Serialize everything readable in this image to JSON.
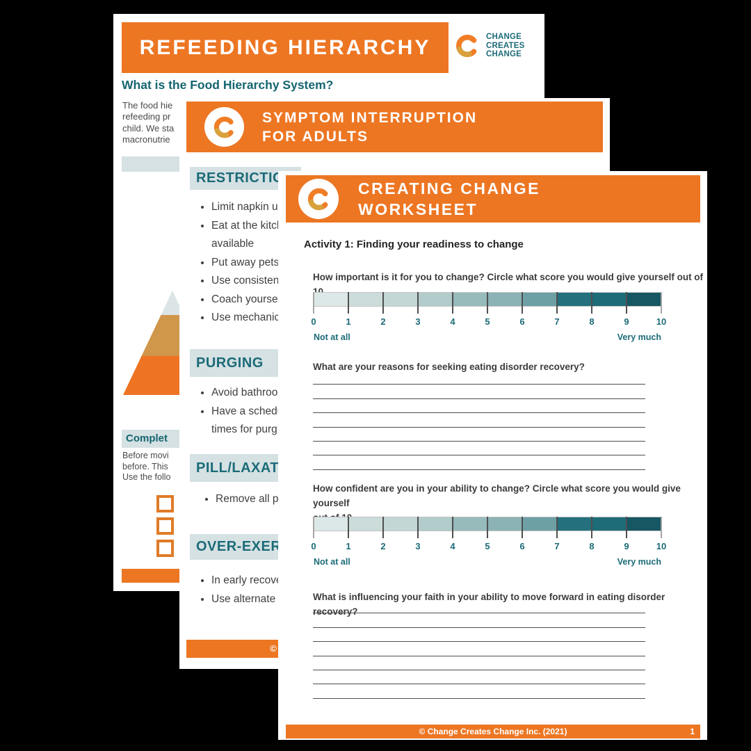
{
  "colors": {
    "orange": "#ED7623",
    "teal": "#1C6B78",
    "teal_dark": "#156570",
    "band_blue": "#D5E1E3",
    "pyramid_top": "#DCE5E6",
    "pyramid_mid": "#D0964A",
    "pyramid_bottom": "#EE7423",
    "checkbox_orange": "#E07B28",
    "logo_orange": "#F07E26",
    "logo_gold": "#D9A13B"
  },
  "back_page": {
    "title": "REFEEDING HIERARCHY",
    "logo_lines": [
      "CHANGE",
      "CREATES",
      "CHANGE"
    ],
    "heading": "What is the Food Hierarchy System?",
    "paragraph_lines": [
      "The food hie",
      "refeeding pr",
      "child. We sta",
      "macronutrie"
    ],
    "complete_heading": "Complet",
    "complete_lines": [
      "Before movi",
      "before. This ",
      "Use the follo"
    ],
    "checkbox_count": 3
  },
  "mid_page": {
    "title_line1": "SYMPTOM INTERRUPTION",
    "title_line2": "FOR ADULTS",
    "sections": [
      {
        "heading": "RESTRICTIO",
        "bullets": [
          "Limit napkin u",
          "Eat at the kitch\navailable",
          "Put away pets",
          "Use consistent",
          "Coach yoursel",
          "Use mechanic"
        ]
      },
      {
        "heading": "PURGING",
        "bullets": [
          "Avoid bathroo",
          "Have a schedu\ntimes for purg"
        ]
      },
      {
        "heading": "PILL/LAXATI",
        "bullets": [
          "Remove all p"
        ]
      },
      {
        "heading": "OVER-EXER",
        "bullets": [
          "In early recove",
          "Use alternate a"
        ]
      }
    ],
    "footer_symbol": "©"
  },
  "front_page": {
    "title_line1": "CREATING CHANGE",
    "title_line2": "WORKSHEET",
    "activity_heading": "Activity 1: Finding your readiness to change",
    "question_importance": "How important is it for you to change?  Circle what score you would give yourself out of 10.",
    "question_reasons": "What are your reasons for seeking eating disorder recovery?",
    "question_confidence_line1": "How confident are you in your ability to change?  Circle what score you would give yourself",
    "question_confidence_line2": "out of  10.",
    "question_faith": "What is influencing your faith in your ability to move forward in eating disorder recovery?",
    "scale": {
      "tick_labels": [
        "0",
        "1",
        "2",
        "3",
        "4",
        "5",
        "6",
        "7",
        "8",
        "9",
        "10"
      ],
      "segment_colors": [
        "#DCE8E7",
        "#CBDCDA",
        "#C3D7D5",
        "#B2CCCB",
        "#97BABB",
        "#8BB2B4",
        "#6DA0A5",
        "#24717D",
        "#1E6C78",
        "#165763"
      ],
      "left_label": "Not at all",
      "right_label": "Very much"
    },
    "answer_lines_count": 7,
    "footer": {
      "copyright": "© Change Creates Change Inc. (2021)",
      "page_number": "1"
    }
  }
}
